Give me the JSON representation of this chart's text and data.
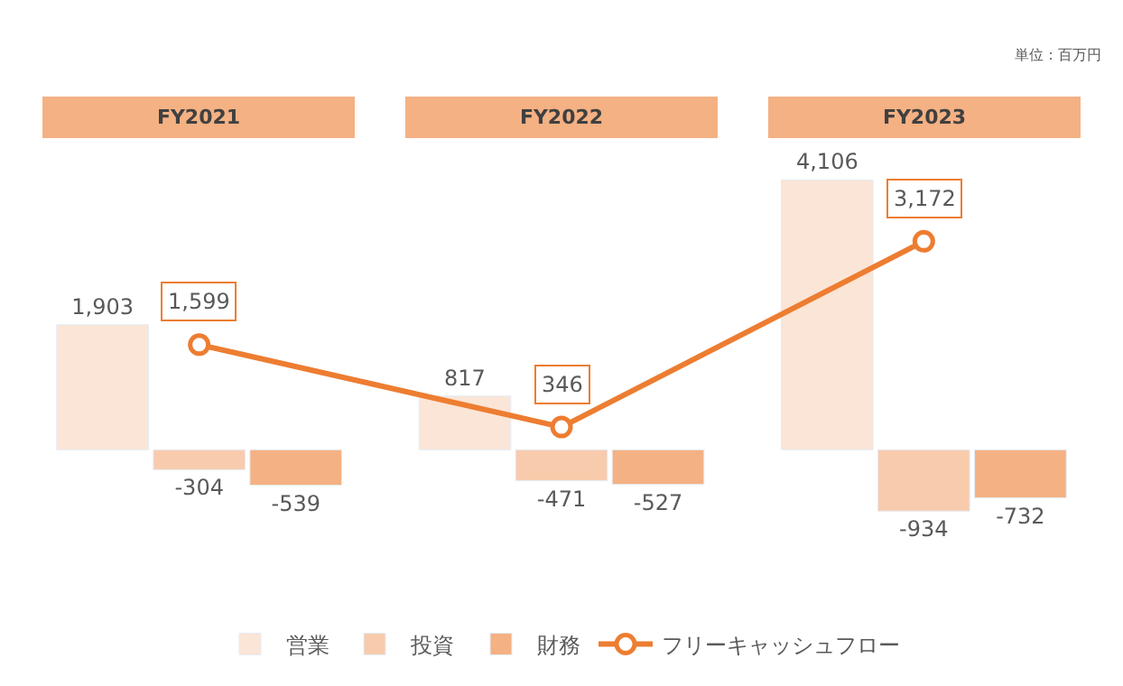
{
  "chart_data": {
    "type": "bar",
    "categories": [
      "FY2021",
      "FY2022",
      "FY2023"
    ],
    "series": [
      {
        "name": "営業",
        "color": "#fbe5d6",
        "values": [
          1903,
          817,
          4106
        ],
        "value_labels": [
          "1,903",
          "817",
          "4,106"
        ]
      },
      {
        "name": "投資",
        "color": "#f8cbad",
        "values": [
          -304,
          -471,
          -934
        ],
        "value_labels": [
          "-304",
          "-471",
          "-934"
        ]
      },
      {
        "name": "財務",
        "color": "#f4b183",
        "values": [
          -539,
          -527,
          -732
        ],
        "value_labels": [
          "-539",
          "-527",
          "-732"
        ]
      },
      {
        "name": "フリーキャッシュフロー",
        "type": "line",
        "color": "#ed7d31",
        "values": [
          1599,
          346,
          3172
        ],
        "value_labels": [
          "1,599",
          "346",
          "3,172"
        ],
        "marker": "circle"
      }
    ],
    "legend": "bottom",
    "annotations": [
      "単位：百万円"
    ]
  }
}
